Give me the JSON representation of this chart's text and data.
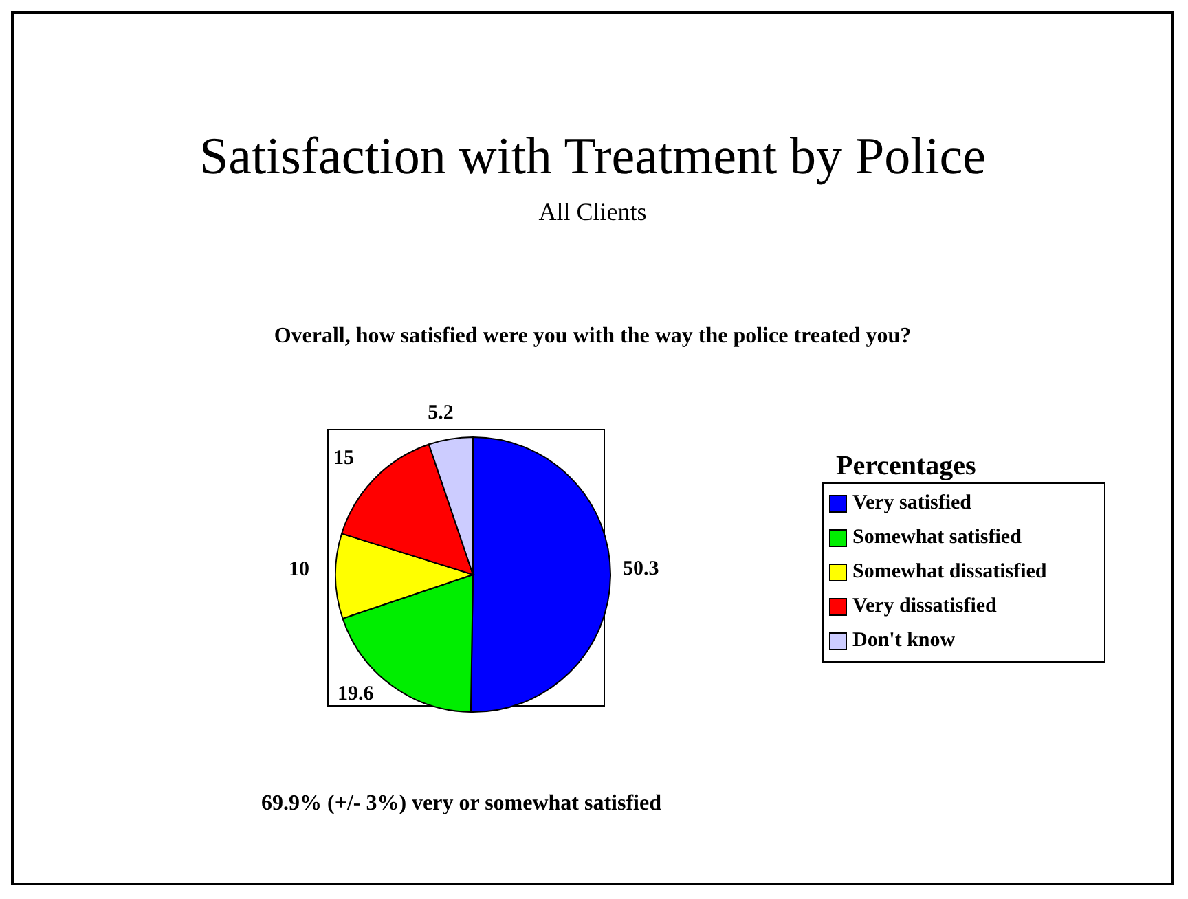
{
  "chart_data": {
    "type": "pie",
    "title": "Satisfaction with Treatment by Police",
    "subtitle": "All Clients",
    "legend_title": "Percentages",
    "legend": "right",
    "categories": [
      "Very satisfied",
      "Somewhat satisfied",
      "Somewhat dissatisfied",
      "Very dissatisfied",
      "Don't know"
    ],
    "values": [
      50.3,
      19.6,
      10,
      15,
      5.2
    ],
    "colors": [
      "#0000ff",
      "#00ee00",
      "#ffff00",
      "#ff0000",
      "#ccccff"
    ],
    "data_labels": true,
    "annotations": [
      "Overall, how satisfied were you with the way the police treated you?",
      "69.9% (+/- 3%) very or somewhat satisfied"
    ]
  }
}
